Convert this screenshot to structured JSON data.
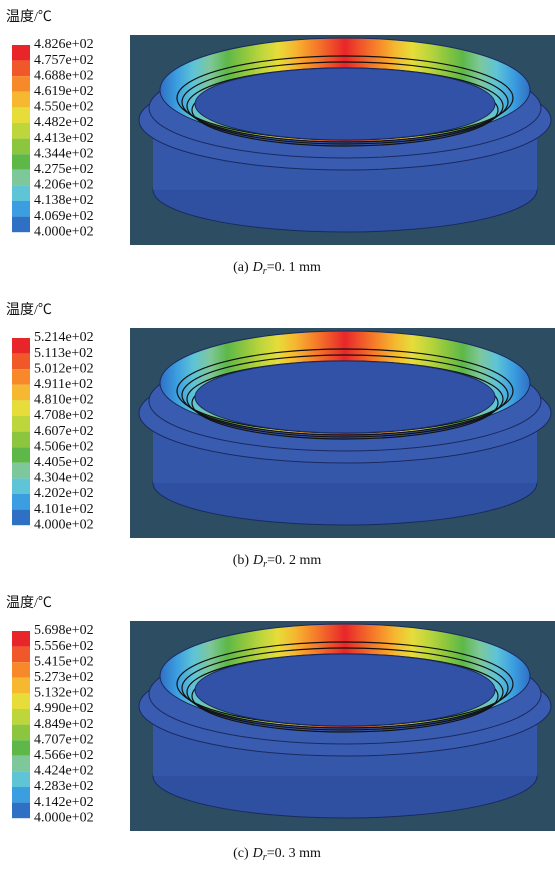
{
  "legend_colors": [
    "#e8262a",
    "#f0582a",
    "#f7892a",
    "#f5b830",
    "#e6dc3a",
    "#bcd63c",
    "#8cc63f",
    "#5db848",
    "#7ec79a",
    "#5fc4d6",
    "#3b9ee0",
    "#2f6fc4"
  ],
  "panels": [
    {
      "legend_title": "温度/℃",
      "legend_labels": [
        "4.826e+02",
        "4.757e+02",
        "4.688e+02",
        "4.619e+02",
        "4.550e+02",
        "4.482e+02",
        "4.413e+02",
        "4.344e+02",
        "4.275e+02",
        "4.206e+02",
        "4.138e+02",
        "4.069e+02",
        "4.000e+02"
      ],
      "caption": {
        "label": "(a)",
        "symbol": "D",
        "subscript": "r",
        "value": "=0. 1 mm"
      }
    },
    {
      "legend_title": "温度/℃",
      "legend_labels": [
        "5.214e+02",
        "5.113e+02",
        "5.012e+02",
        "4.911e+02",
        "4.810e+02",
        "4.708e+02",
        "4.607e+02",
        "4.506e+02",
        "4.405e+02",
        "4.304e+02",
        "4.202e+02",
        "4.101e+02",
        "4.000e+02"
      ],
      "caption": {
        "label": "(b)",
        "symbol": "D",
        "subscript": "r",
        "value": "=0. 2 mm"
      }
    },
    {
      "legend_title": "温度/℃",
      "legend_labels": [
        "5.698e+02",
        "5.556e+02",
        "5.415e+02",
        "5.273e+02",
        "5.132e+02",
        "4.990e+02",
        "4.849e+02",
        "4.707e+02",
        "4.566e+02",
        "4.424e+02",
        "4.283e+02",
        "4.142e+02",
        "4.000e+02"
      ],
      "caption": {
        "label": "(c)",
        "symbol": "D",
        "subscript": "r",
        "value": "=0. 3 mm"
      }
    }
  ]
}
